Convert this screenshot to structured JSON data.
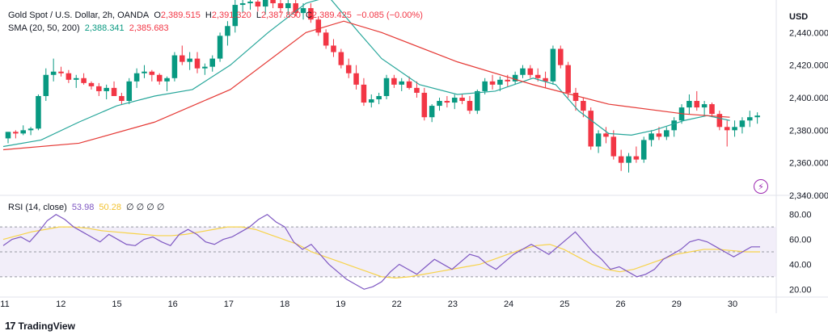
{
  "header": {
    "symbol": "Gold Spot / U.S. Dollar, 2h, OANDA",
    "o_label": "O",
    "o_value": "2,389.515",
    "h_label": "H",
    "h_value": "2,391.320",
    "l_label": "L",
    "l_value": "2,387.850",
    "c_label": "C",
    "c_value": "2,389.425",
    "change": "−0.085 (−0.00%)"
  },
  "sma_legend": {
    "label": "SMA (20, 50, 200)",
    "v1": "2,388.341",
    "v2": "2,385.683"
  },
  "rsi_legend": {
    "label": "RSI (14, close)",
    "v1": "53.98",
    "v2": "50.28",
    "zeros": "∅ ∅ ∅ ∅"
  },
  "currency": "USD",
  "branding": "TradingView",
  "colors": {
    "up": "#089981",
    "down": "#f23645",
    "sma_fast": "#26a69a",
    "sma_slow": "#e53935",
    "rsi": "#7e57c2",
    "rsi_ma": "#f7d34a",
    "rsi_band": "#ede7f6"
  },
  "chart_data": [
    {
      "type": "candlestick",
      "ylim": [
        2340,
        2460
      ],
      "yticks": [
        "2,440.000",
        "2,420.000",
        "2,400.000",
        "2,380.000",
        "2,360.000",
        "2,340.000"
      ],
      "ytick_values": [
        2440,
        2420,
        2400,
        2380,
        2360,
        2340
      ],
      "xticks": [
        "11",
        "12",
        "15",
        "16",
        "17",
        "18",
        "19",
        "22",
        "23",
        "24",
        "25",
        "26",
        "29",
        "30"
      ],
      "candles": [
        [
          2375,
          2379,
          2372,
          2379
        ],
        [
          2379,
          2380,
          2375,
          2378
        ],
        [
          2378,
          2383,
          2377,
          2380
        ],
        [
          2380,
          2382,
          2377,
          2381
        ],
        [
          2381,
          2402,
          2380,
          2401
        ],
        [
          2401,
          2418,
          2398,
          2414
        ],
        [
          2414,
          2424,
          2410,
          2416
        ],
        [
          2416,
          2419,
          2413,
          2415
        ],
        [
          2415,
          2417,
          2409,
          2411
        ],
        [
          2411,
          2414,
          2406,
          2412
        ],
        [
          2412,
          2415,
          2408,
          2409
        ],
        [
          2409,
          2410,
          2405,
          2407
        ],
        [
          2407,
          2409,
          2401,
          2404
        ],
        [
          2404,
          2408,
          2399,
          2406
        ],
        [
          2406,
          2410,
          2402,
          2401
        ],
        [
          2401,
          2403,
          2396,
          2398
        ],
        [
          2398,
          2412,
          2396,
          2410
        ],
        [
          2410,
          2418,
          2406,
          2415
        ],
        [
          2415,
          2420,
          2412,
          2416
        ],
        [
          2416,
          2417,
          2410,
          2414
        ],
        [
          2414,
          2415,
          2408,
          2410
        ],
        [
          2410,
          2413,
          2404,
          2412
        ],
        [
          2412,
          2428,
          2410,
          2426
        ],
        [
          2426,
          2432,
          2420,
          2422
        ],
        [
          2422,
          2428,
          2417,
          2424
        ],
        [
          2424,
          2428,
          2415,
          2418
        ],
        [
          2418,
          2421,
          2414,
          2419
        ],
        [
          2419,
          2426,
          2416,
          2424
        ],
        [
          2424,
          2440,
          2422,
          2438
        ],
        [
          2438,
          2447,
          2432,
          2444
        ],
        [
          2444,
          2460,
          2440,
          2457
        ],
        [
          2457,
          2462,
          2452,
          2458
        ],
        [
          2458,
          2462,
          2454,
          2459
        ],
        [
          2459,
          2462,
          2453,
          2456
        ],
        [
          2456,
          2461,
          2451,
          2460
        ],
        [
          2460,
          2463,
          2455,
          2458
        ],
        [
          2458,
          2462,
          2452,
          2455
        ],
        [
          2455,
          2460,
          2451,
          2458
        ],
        [
          2458,
          2462,
          2450,
          2452
        ],
        [
          2452,
          2458,
          2448,
          2455
        ],
        [
          2455,
          2458,
          2446,
          2448
        ],
        [
          2448,
          2450,
          2438,
          2440
        ],
        [
          2440,
          2442,
          2430,
          2432
        ],
        [
          2432,
          2436,
          2425,
          2428
        ],
        [
          2428,
          2430,
          2418,
          2420
        ],
        [
          2420,
          2424,
          2412,
          2415
        ],
        [
          2415,
          2420,
          2405,
          2408
        ],
        [
          2408,
          2412,
          2395,
          2397
        ],
        [
          2397,
          2402,
          2394,
          2399
        ],
        [
          2399,
          2403,
          2396,
          2401
        ],
        [
          2401,
          2414,
          2399,
          2412
        ],
        [
          2412,
          2414,
          2406,
          2408
        ],
        [
          2408,
          2412,
          2404,
          2410
        ],
        [
          2410,
          2413,
          2405,
          2406
        ],
        [
          2406,
          2410,
          2400,
          2403
        ],
        [
          2403,
          2406,
          2386,
          2388
        ],
        [
          2388,
          2396,
          2385,
          2395
        ],
        [
          2395,
          2400,
          2392,
          2398
        ],
        [
          2398,
          2401,
          2394,
          2397
        ],
        [
          2397,
          2402,
          2393,
          2400
        ],
        [
          2400,
          2402,
          2396,
          2398
        ],
        [
          2398,
          2401,
          2390,
          2392
        ],
        [
          2392,
          2405,
          2390,
          2404
        ],
        [
          2404,
          2412,
          2402,
          2410
        ],
        [
          2410,
          2414,
          2405,
          2408
        ],
        [
          2408,
          2413,
          2404,
          2411
        ],
        [
          2411,
          2414,
          2407,
          2410
        ],
        [
          2410,
          2416,
          2408,
          2414
        ],
        [
          2414,
          2420,
          2412,
          2418
        ],
        [
          2418,
          2420,
          2412,
          2414
        ],
        [
          2414,
          2418,
          2410,
          2412
        ],
        [
          2412,
          2416,
          2406,
          2410
        ],
        [
          2410,
          2432,
          2408,
          2430
        ],
        [
          2430,
          2432,
          2418,
          2420
        ],
        [
          2420,
          2422,
          2400,
          2403
        ],
        [
          2403,
          2406,
          2392,
          2398
        ],
        [
          2398,
          2400,
          2388,
          2392
        ],
        [
          2392,
          2394,
          2368,
          2370
        ],
        [
          2370,
          2380,
          2366,
          2378
        ],
        [
          2378,
          2382,
          2372,
          2376
        ],
        [
          2376,
          2380,
          2362,
          2364
        ],
        [
          2364,
          2368,
          2355,
          2360
        ],
        [
          2360,
          2366,
          2354,
          2364
        ],
        [
          2364,
          2370,
          2360,
          2362
        ],
        [
          2362,
          2376,
          2360,
          2374
        ],
        [
          2374,
          2380,
          2370,
          2378
        ],
        [
          2378,
          2382,
          2374,
          2376
        ],
        [
          2376,
          2382,
          2374,
          2380
        ],
        [
          2380,
          2388,
          2376,
          2386
        ],
        [
          2386,
          2396,
          2384,
          2394
        ],
        [
          2394,
          2402,
          2390,
          2398
        ],
        [
          2398,
          2404,
          2392,
          2394
        ],
        [
          2394,
          2398,
          2389,
          2396
        ],
        [
          2396,
          2397,
          2388,
          2390
        ],
        [
          2390,
          2392,
          2380,
          2382
        ],
        [
          2382,
          2386,
          2370,
          2380
        ],
        [
          2380,
          2386,
          2376,
          2382
        ],
        [
          2382,
          2388,
          2378,
          2386
        ],
        [
          2386,
          2392,
          2382,
          2388
        ],
        [
          2388,
          2391,
          2384,
          2389
        ]
      ],
      "sma_fast": [
        [
          0,
          2370
        ],
        [
          0.05,
          2374
        ],
        [
          0.1,
          2385
        ],
        [
          0.15,
          2395
        ],
        [
          0.2,
          2401
        ],
        [
          0.25,
          2405
        ],
        [
          0.3,
          2420
        ],
        [
          0.35,
          2440
        ],
        [
          0.4,
          2458
        ],
        [
          0.43,
          2462
        ],
        [
          0.47,
          2440
        ],
        [
          0.5,
          2424
        ],
        [
          0.55,
          2408
        ],
        [
          0.6,
          2402
        ],
        [
          0.65,
          2404
        ],
        [
          0.7,
          2412
        ],
        [
          0.73,
          2408
        ],
        [
          0.76,
          2392
        ],
        [
          0.8,
          2378
        ],
        [
          0.83,
          2377
        ],
        [
          0.86,
          2380
        ],
        [
          0.9,
          2386
        ],
        [
          0.93,
          2389
        ],
        [
          0.96,
          2386
        ]
      ],
      "sma_slow": [
        [
          0,
          2368
        ],
        [
          0.1,
          2372
        ],
        [
          0.2,
          2385
        ],
        [
          0.3,
          2405
        ],
        [
          0.4,
          2440
        ],
        [
          0.45,
          2447
        ],
        [
          0.5,
          2440
        ],
        [
          0.6,
          2422
        ],
        [
          0.7,
          2408
        ],
        [
          0.8,
          2396
        ],
        [
          0.9,
          2390
        ],
        [
          0.96,
          2388
        ]
      ]
    },
    {
      "type": "line",
      "title": "RSI (14, close)",
      "ylim": [
        15,
        85
      ],
      "yticks": [
        "80.00",
        "60.00",
        "40.00",
        "20.00"
      ],
      "ytick_values": [
        80,
        60,
        40,
        20
      ],
      "bands": [
        30,
        50,
        70
      ],
      "series": [
        {
          "values": [
            55,
            60,
            62,
            58,
            66,
            75,
            80,
            76,
            70,
            66,
            62,
            58,
            64,
            60,
            56,
            55,
            60,
            62,
            58,
            55,
            64,
            68,
            64,
            58,
            56,
            60,
            62,
            66,
            70,
            76,
            80,
            74,
            70,
            58,
            52,
            56,
            48,
            40,
            34,
            28,
            24,
            20,
            22,
            26,
            34,
            40,
            36,
            32,
            38,
            44,
            40,
            36,
            42,
            48,
            46,
            40,
            36,
            42,
            48,
            52,
            56,
            52,
            48,
            54,
            60,
            66,
            58,
            50,
            44,
            36,
            38,
            34,
            30,
            32,
            36,
            44,
            48,
            52,
            58,
            60,
            58,
            54,
            50,
            46,
            50,
            54,
            54
          ]
        },
        {
          "values": [
            60,
            63,
            66,
            68,
            70,
            70,
            69,
            67,
            66,
            65,
            64,
            63,
            63,
            64,
            66,
            68,
            70,
            70,
            68,
            64,
            60,
            56,
            50,
            46,
            42,
            38,
            34,
            30,
            29,
            30,
            32,
            34,
            36,
            38,
            40,
            44,
            48,
            52,
            55,
            56,
            52,
            46,
            40,
            36,
            34,
            36,
            40,
            44,
            48,
            50,
            52,
            52,
            51,
            50,
            50
          ]
        }
      ]
    }
  ]
}
